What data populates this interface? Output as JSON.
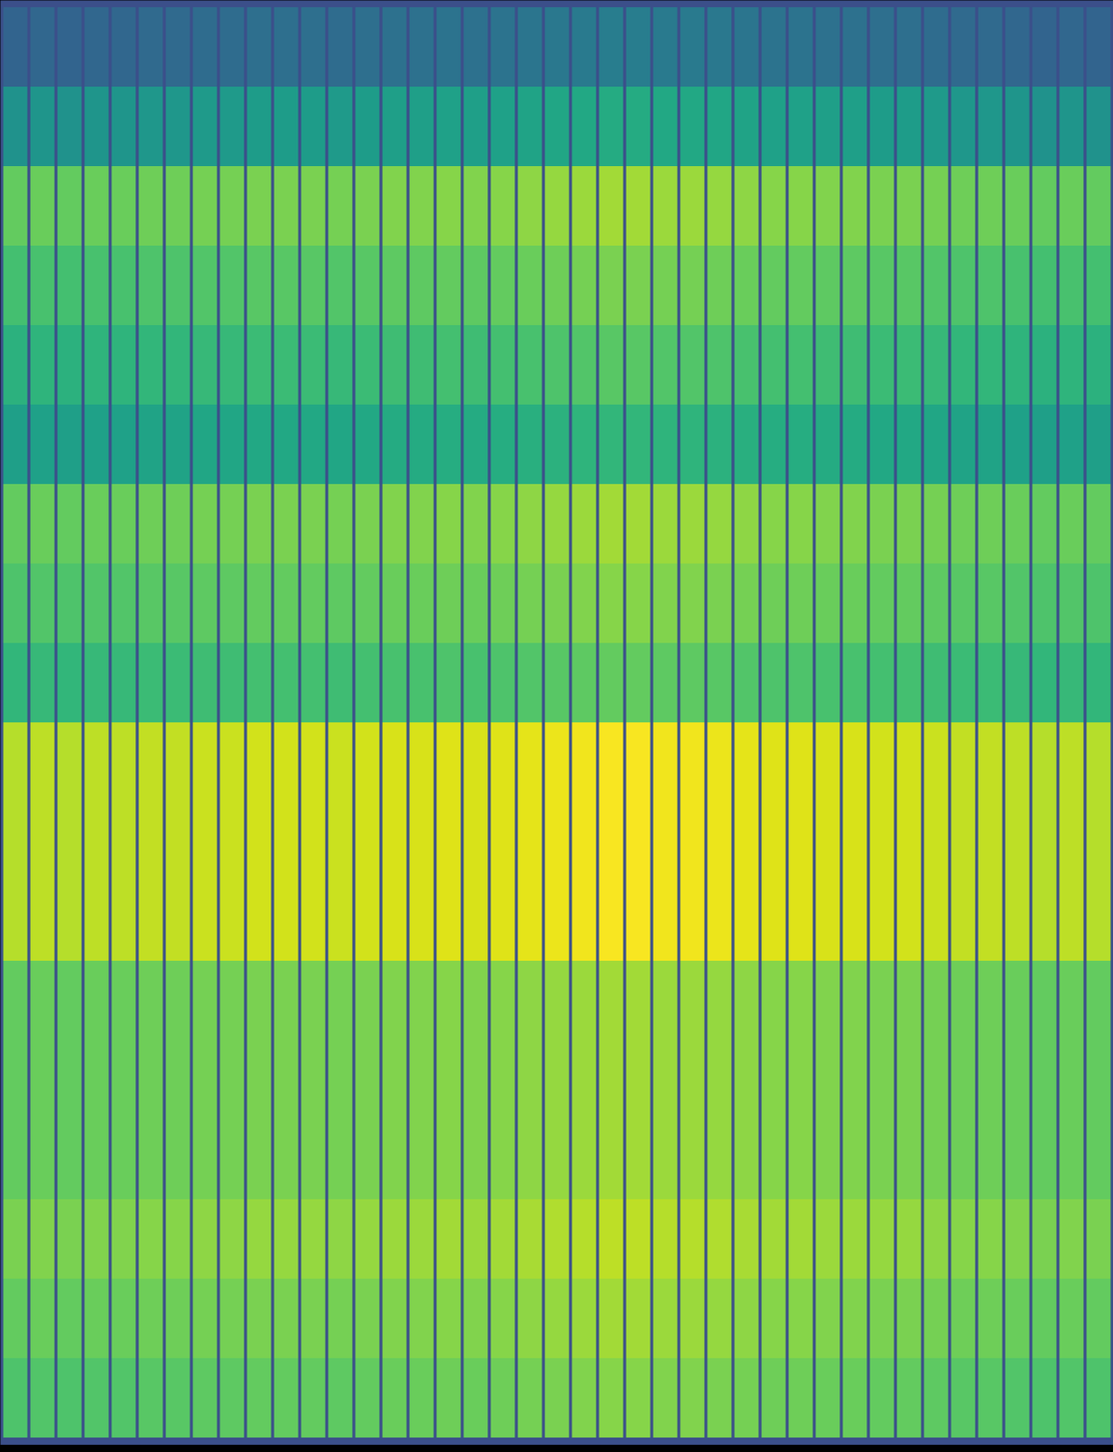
{
  "chart_data": {
    "type": "heatmap",
    "color": "viridis",
    "color_range": [
      0,
      100
    ],
    "tick_labels": false,
    "cells": [
      [
        32,
        33,
        32,
        33,
        33,
        34,
        34,
        35,
        35,
        36,
        36,
        36,
        35,
        36,
        37,
        37,
        38,
        37,
        38,
        39,
        40,
        41,
        42,
        42,
        41,
        41,
        40,
        39,
        38,
        38,
        37,
        37,
        36,
        36,
        35,
        34,
        34,
        33,
        32,
        33,
        32
      ],
      [
        51,
        52,
        51,
        52,
        52,
        53,
        53,
        54,
        54,
        55,
        55,
        55,
        54,
        55,
        56,
        56,
        57,
        56,
        57,
        58,
        59,
        60,
        61,
        61,
        60,
        60,
        59,
        58,
        57,
        57,
        56,
        56,
        55,
        55,
        54,
        53,
        53,
        52,
        51,
        52,
        51
      ],
      [
        76,
        77,
        76,
        77,
        77,
        78,
        78,
        79,
        79,
        80,
        80,
        80,
        79,
        80,
        81,
        81,
        82,
        81,
        82,
        83,
        84,
        85,
        86,
        86,
        85,
        85,
        84,
        83,
        82,
        82,
        81,
        81,
        80,
        80,
        79,
        78,
        78,
        77,
        76,
        77,
        76
      ],
      [
        70,
        71,
        70,
        71,
        71,
        72,
        72,
        73,
        73,
        74,
        74,
        74,
        73,
        74,
        75,
        75,
        76,
        75,
        76,
        77,
        78,
        79,
        80,
        80,
        79,
        79,
        78,
        77,
        76,
        76,
        75,
        75,
        74,
        74,
        73,
        72,
        72,
        71,
        70,
        71,
        70
      ],
      [
        64,
        65,
        64,
        65,
        65,
        66,
        66,
        67,
        67,
        68,
        68,
        68,
        67,
        68,
        69,
        69,
        70,
        69,
        70,
        71,
        72,
        73,
        74,
        74,
        73,
        73,
        72,
        71,
        70,
        70,
        69,
        69,
        68,
        68,
        67,
        66,
        66,
        65,
        64,
        65,
        64
      ],
      [
        56,
        57,
        56,
        57,
        57,
        58,
        58,
        59,
        59,
        60,
        60,
        60,
        59,
        60,
        61,
        61,
        62,
        61,
        62,
        63,
        64,
        65,
        66,
        66,
        65,
        65,
        64,
        63,
        62,
        62,
        61,
        61,
        60,
        60,
        59,
        58,
        58,
        57,
        56,
        57,
        56
      ],
      [
        76,
        77,
        76,
        77,
        77,
        78,
        78,
        79,
        79,
        80,
        80,
        80,
        79,
        80,
        81,
        81,
        82,
        81,
        82,
        83,
        84,
        85,
        86,
        86,
        85,
        85,
        84,
        83,
        82,
        82,
        81,
        81,
        80,
        80,
        79,
        78,
        78,
        77,
        76,
        77,
        76
      ],
      [
        72,
        73,
        72,
        73,
        73,
        74,
        74,
        75,
        75,
        76,
        76,
        76,
        75,
        76,
        77,
        77,
        78,
        77,
        78,
        79,
        80,
        81,
        82,
        82,
        81,
        81,
        80,
        79,
        78,
        78,
        77,
        77,
        76,
        76,
        75,
        74,
        74,
        73,
        72,
        73,
        72
      ],
      [
        66,
        67,
        66,
        67,
        67,
        68,
        68,
        69,
        69,
        70,
        70,
        70,
        69,
        70,
        71,
        71,
        72,
        71,
        72,
        73,
        74,
        75,
        76,
        76,
        75,
        75,
        74,
        73,
        72,
        72,
        71,
        71,
        70,
        70,
        69,
        68,
        68,
        67,
        66,
        67,
        66
      ],
      [
        89,
        90,
        89,
        90,
        90,
        91,
        91,
        92,
        92,
        93,
        93,
        93,
        92,
        93,
        94,
        94,
        95,
        94,
        95,
        96,
        97,
        98,
        99,
        99,
        98,
        98,
        97,
        96,
        95,
        95,
        94,
        94,
        93,
        93,
        92,
        91,
        91,
        90,
        89,
        90,
        89
      ],
      [
        89,
        90,
        89,
        90,
        90,
        91,
        91,
        92,
        92,
        93,
        93,
        93,
        92,
        93,
        94,
        94,
        95,
        94,
        95,
        96,
        97,
        98,
        99,
        99,
        98,
        98,
        97,
        96,
        95,
        95,
        94,
        94,
        93,
        93,
        92,
        91,
        91,
        90,
        89,
        90,
        89
      ],
      [
        89,
        90,
        89,
        90,
        90,
        91,
        91,
        92,
        92,
        93,
        93,
        93,
        92,
        93,
        94,
        94,
        95,
        94,
        95,
        96,
        97,
        98,
        99,
        99,
        98,
        98,
        97,
        96,
        95,
        95,
        94,
        94,
        93,
        93,
        92,
        91,
        91,
        90,
        89,
        90,
        89
      ],
      [
        76,
        77,
        76,
        77,
        77,
        78,
        78,
        79,
        79,
        80,
        80,
        80,
        79,
        80,
        81,
        81,
        82,
        81,
        82,
        83,
        84,
        85,
        86,
        86,
        85,
        85,
        84,
        83,
        82,
        82,
        81,
        81,
        80,
        80,
        79,
        78,
        78,
        77,
        76,
        77,
        76
      ],
      [
        76,
        77,
        76,
        77,
        77,
        78,
        78,
        79,
        79,
        80,
        80,
        80,
        79,
        80,
        81,
        81,
        82,
        81,
        82,
        83,
        84,
        85,
        86,
        86,
        85,
        85,
        84,
        83,
        82,
        82,
        81,
        81,
        80,
        80,
        79,
        78,
        78,
        77,
        76,
        77,
        76
      ],
      [
        76,
        77,
        76,
        77,
        77,
        78,
        78,
        79,
        79,
        80,
        80,
        80,
        79,
        80,
        81,
        81,
        82,
        81,
        82,
        83,
        84,
        85,
        86,
        86,
        85,
        85,
        84,
        83,
        82,
        82,
        81,
        81,
        80,
        80,
        79,
        78,
        78,
        77,
        76,
        77,
        76
      ],
      [
        80,
        81,
        80,
        81,
        81,
        82,
        82,
        83,
        83,
        84,
        84,
        84,
        83,
        84,
        85,
        85,
        86,
        85,
        86,
        87,
        88,
        89,
        90,
        90,
        89,
        89,
        88,
        87,
        86,
        86,
        85,
        85,
        84,
        84,
        83,
        82,
        82,
        81,
        80,
        81,
        80
      ],
      [
        76,
        77,
        76,
        77,
        77,
        78,
        78,
        79,
        79,
        80,
        80,
        80,
        79,
        80,
        81,
        81,
        82,
        81,
        82,
        83,
        84,
        85,
        86,
        86,
        85,
        85,
        84,
        83,
        82,
        82,
        81,
        81,
        80,
        80,
        79,
        78,
        78,
        77,
        76,
        77,
        76
      ],
      [
        72,
        73,
        72,
        73,
        73,
        74,
        74,
        75,
        75,
        76,
        76,
        76,
        75,
        76,
        77,
        77,
        78,
        77,
        78,
        79,
        80,
        81,
        82,
        82,
        81,
        81,
        80,
        79,
        78,
        78,
        77,
        77,
        76,
        76,
        75,
        74,
        74,
        73,
        72,
        73,
        72
      ]
    ]
  }
}
